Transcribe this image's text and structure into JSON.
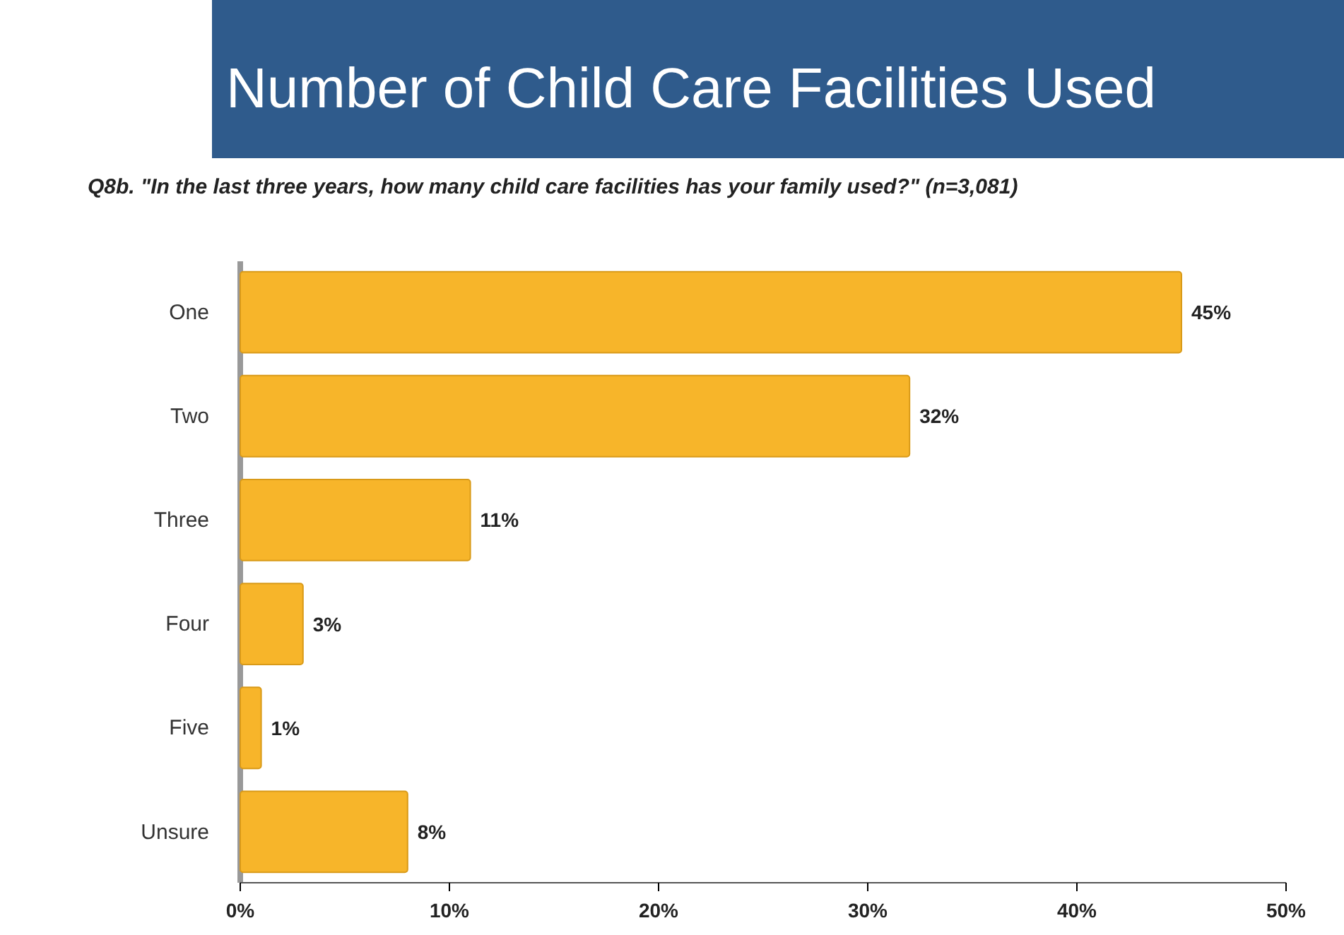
{
  "chart_data": {
    "type": "bar",
    "orientation": "horizontal",
    "title": "Number of Child Care Facilities Used",
    "subtitle": "Q8b. \"In the last three years, how many child care facilities has your family used?\" (n=3,081)",
    "categories": [
      "One",
      "Two",
      "Three",
      "Four",
      "Five",
      "Unsure"
    ],
    "values": [
      45,
      32,
      11,
      3,
      1,
      8
    ],
    "value_labels": [
      "45%",
      "32%",
      "11%",
      "3%",
      "1%",
      "8%"
    ],
    "color": "#f7b52a",
    "xlim": [
      0,
      50
    ],
    "xticks": [
      {
        "value": 0,
        "label": "0%"
      },
      {
        "value": 10,
        "label": "10%"
      },
      {
        "value": 20,
        "label": "20%"
      },
      {
        "value": 30,
        "label": "30%"
      },
      {
        "value": 40,
        "label": "40%"
      },
      {
        "value": 50,
        "label": "50%"
      }
    ],
    "grid": false
  }
}
